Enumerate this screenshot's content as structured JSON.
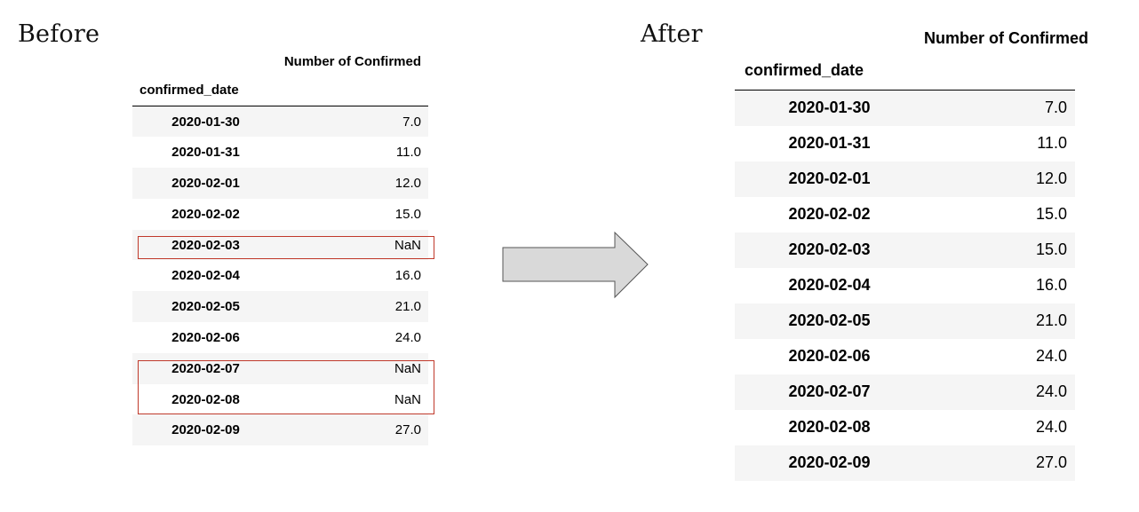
{
  "before": {
    "caption": "Before",
    "column_header": "Number of Confirmed",
    "index_name": "confirmed_date",
    "rows": [
      {
        "date": "2020-01-30",
        "value": "7.0"
      },
      {
        "date": "2020-01-31",
        "value": "11.0"
      },
      {
        "date": "2020-02-01",
        "value": "12.0"
      },
      {
        "date": "2020-02-02",
        "value": "15.0"
      },
      {
        "date": "2020-02-03",
        "value": "NaN"
      },
      {
        "date": "2020-02-04",
        "value": "16.0"
      },
      {
        "date": "2020-02-05",
        "value": "21.0"
      },
      {
        "date": "2020-02-06",
        "value": "24.0"
      },
      {
        "date": "2020-02-07",
        "value": "NaN"
      },
      {
        "date": "2020-02-08",
        "value": "NaN"
      },
      {
        "date": "2020-02-09",
        "value": "27.0"
      }
    ]
  },
  "after": {
    "caption": "After",
    "column_header": "Number of Confirmed",
    "index_name": "confirmed_date",
    "rows": [
      {
        "date": "2020-01-30",
        "value": "7.0"
      },
      {
        "date": "2020-01-31",
        "value": "11.0"
      },
      {
        "date": "2020-02-01",
        "value": "12.0"
      },
      {
        "date": "2020-02-02",
        "value": "15.0"
      },
      {
        "date": "2020-02-03",
        "value": "15.0"
      },
      {
        "date": "2020-02-04",
        "value": "16.0"
      },
      {
        "date": "2020-02-05",
        "value": "21.0"
      },
      {
        "date": "2020-02-06",
        "value": "24.0"
      },
      {
        "date": "2020-02-07",
        "value": "24.0"
      },
      {
        "date": "2020-02-08",
        "value": "24.0"
      },
      {
        "date": "2020-02-09",
        "value": "27.0"
      }
    ]
  },
  "colors": {
    "highlight": "#c0392b",
    "stripe": "#f5f5f5",
    "arrow_fill": "#d9d9d9",
    "arrow_stroke": "#555555"
  },
  "arrow_icon": "right-arrow-icon"
}
